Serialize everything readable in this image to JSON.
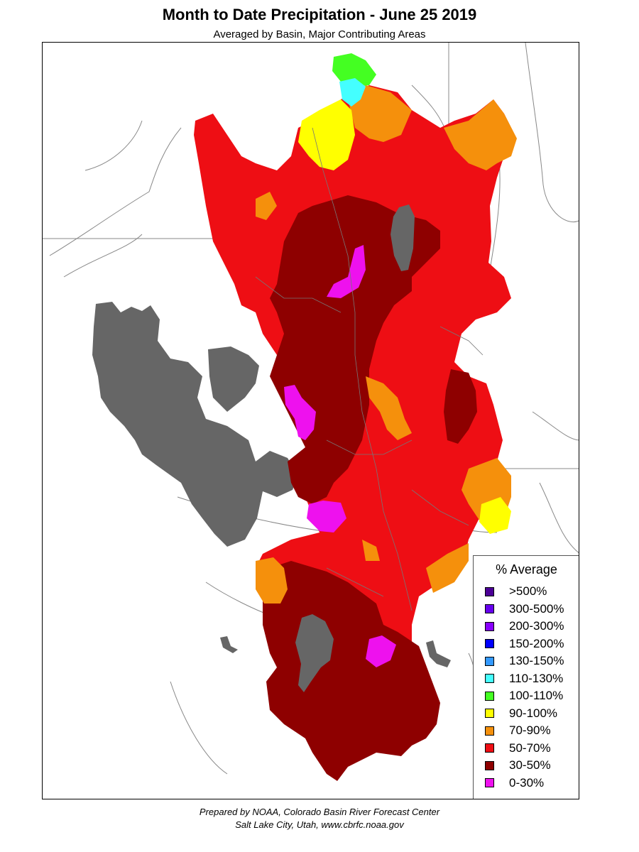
{
  "title": "Month to Date Precipitation - June 25 2019",
  "subtitle": "Averaged by Basin, Major Contributing Areas",
  "legend": {
    "title": "% Average",
    "items": [
      {
        "label": ">500%",
        "color": "#4b0096"
      },
      {
        "label": "300-500%",
        "color": "#6600ee"
      },
      {
        "label": "200-300%",
        "color": "#8800ff"
      },
      {
        "label": "150-200%",
        "color": "#0000ff"
      },
      {
        "label": "130-150%",
        "color": "#3399ff"
      },
      {
        "label": "110-130%",
        "color": "#44ffff"
      },
      {
        "label": "100-110%",
        "color": "#44ff22"
      },
      {
        "label": "90-100%",
        "color": "#ffff00"
      },
      {
        "label": "70-90%",
        "color": "#f5900c"
      },
      {
        "label": "50-70%",
        "color": "#ee0e14"
      },
      {
        "label": "30-50%",
        "color": "#8e0000"
      },
      {
        "label": "0-30%",
        "color": "#ee11ee"
      }
    ]
  },
  "map_colors": {
    "lake": "#666666",
    "border_line": "#888888"
  },
  "credit": {
    "line1": "Prepared by NOAA, Colorado Basin River Forecast Center",
    "line2": "Salt Lake City, Utah, www.cbrfc.noaa.gov"
  }
}
